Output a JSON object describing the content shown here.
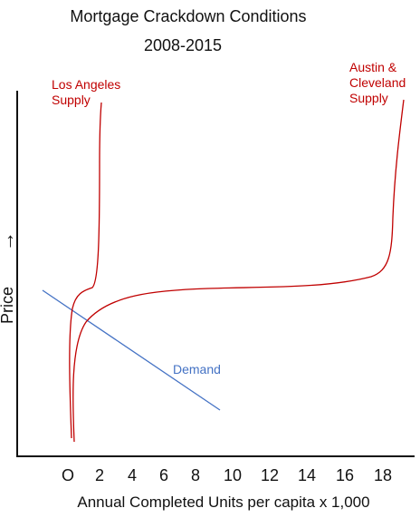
{
  "title": {
    "line1": "Mortgage Crackdown Conditions",
    "line2": "2008-2015"
  },
  "axes": {
    "x_label": "Annual Completed Units per capita x 1,000",
    "y_label": "Price",
    "y_arrow": "→",
    "x_ticks": [
      "O",
      "2",
      "4",
      "6",
      "8",
      "10",
      "12",
      "14",
      "16",
      "18"
    ]
  },
  "curves": {
    "la_supply": {
      "label_line1": "Los Angeles",
      "label_line2": "Supply",
      "color": "#c00000"
    },
    "austin_supply": {
      "label_line1": "Austin &",
      "label_line2": "Cleveland",
      "label_line3": "Supply",
      "color": "#c00000"
    },
    "demand": {
      "label": "Demand",
      "color": "#4472c4"
    }
  }
}
